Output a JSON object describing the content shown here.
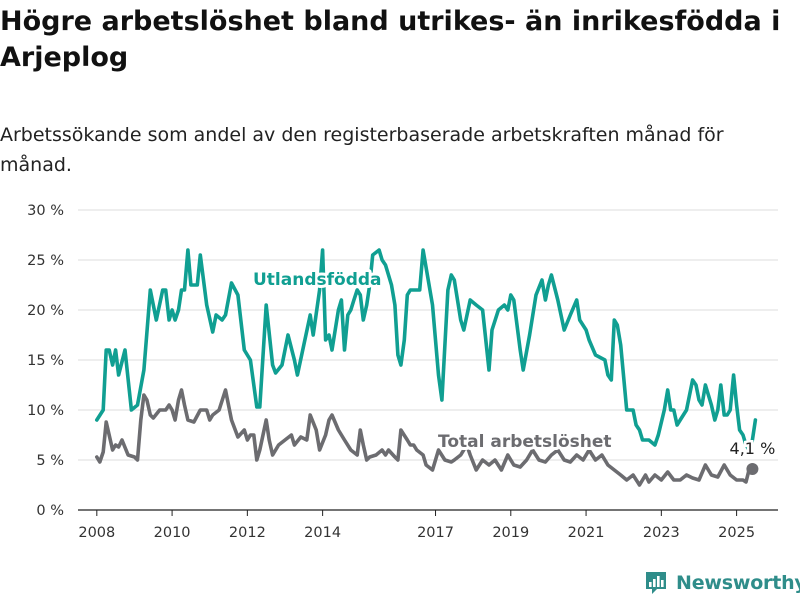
{
  "header": {
    "title": "Högre arbetslöshet bland utrikes- än inrikesfödda i Arjeplog",
    "subtitle": "Arbetssökande som andel av den registerbaserade arbetskraften månad för månad."
  },
  "brand": {
    "name": "Newsworthy",
    "icon": "newsworthy-logo-icon",
    "color": "#2f8d8a"
  },
  "chart_data": {
    "type": "line",
    "x_axis": {
      "min": 2007.5,
      "max": 2026.1,
      "ticks": [
        2008,
        2010,
        2012,
        2014,
        2017,
        2019,
        2021,
        2023,
        2025
      ]
    },
    "y_axis": {
      "min": 0,
      "max": 30,
      "ticks": [
        0,
        5,
        10,
        15,
        20,
        25,
        30
      ],
      "tick_suffix": " %"
    },
    "grid": "horizontal",
    "series": [
      {
        "name": "Utlandsfödda",
        "color": "#109f92",
        "label": "Utlandsfödda",
        "points": [
          [
            2008.0,
            9.0
          ],
          [
            2008.17,
            10.0
          ],
          [
            2008.25,
            16.0
          ],
          [
            2008.33,
            16.0
          ],
          [
            2008.42,
            14.5
          ],
          [
            2008.5,
            16.0
          ],
          [
            2008.58,
            13.5
          ],
          [
            2008.75,
            16.0
          ],
          [
            2008.92,
            10.0
          ],
          [
            2009.08,
            10.5
          ],
          [
            2009.25,
            14.0
          ],
          [
            2009.42,
            22.0
          ],
          [
            2009.58,
            19.0
          ],
          [
            2009.75,
            22.0
          ],
          [
            2009.83,
            22.0
          ],
          [
            2009.92,
            19.0
          ],
          [
            2010.0,
            20.0
          ],
          [
            2010.08,
            19.0
          ],
          [
            2010.17,
            20.0
          ],
          [
            2010.25,
            22.0
          ],
          [
            2010.33,
            22.0
          ],
          [
            2010.42,
            26.0
          ],
          [
            2010.5,
            22.5
          ],
          [
            2010.67,
            22.5
          ],
          [
            2010.75,
            25.5
          ],
          [
            2010.92,
            20.5
          ],
          [
            2011.08,
            17.8
          ],
          [
            2011.17,
            19.5
          ],
          [
            2011.33,
            19.0
          ],
          [
            2011.42,
            19.5
          ],
          [
            2011.58,
            22.7
          ],
          [
            2011.75,
            21.5
          ],
          [
            2011.92,
            16.0
          ],
          [
            2012.08,
            15.0
          ],
          [
            2012.25,
            10.3
          ],
          [
            2012.33,
            10.3
          ],
          [
            2012.5,
            20.5
          ],
          [
            2012.67,
            14.5
          ],
          [
            2012.75,
            13.7
          ],
          [
            2012.92,
            14.5
          ],
          [
            2013.08,
            17.5
          ],
          [
            2013.25,
            15.0
          ],
          [
            2013.33,
            13.5
          ],
          [
            2013.5,
            16.5
          ],
          [
            2013.67,
            19.5
          ],
          [
            2013.75,
            17.5
          ],
          [
            2013.92,
            22.0
          ],
          [
            2014.0,
            26.0
          ],
          [
            2014.08,
            17.0
          ],
          [
            2014.17,
            17.5
          ],
          [
            2014.25,
            16.0
          ],
          [
            2014.42,
            20.0
          ],
          [
            2014.5,
            21.0
          ],
          [
            2014.58,
            16.0
          ],
          [
            2014.67,
            19.5
          ],
          [
            2014.75,
            20.0
          ],
          [
            2014.83,
            21.0
          ],
          [
            2014.92,
            22.0
          ],
          [
            2015.0,
            21.5
          ],
          [
            2015.08,
            19.0
          ],
          [
            2015.17,
            20.5
          ],
          [
            2015.25,
            22.5
          ],
          [
            2015.33,
            25.5
          ],
          [
            2015.5,
            26.0
          ],
          [
            2015.58,
            25.0
          ],
          [
            2015.67,
            24.5
          ],
          [
            2015.83,
            22.5
          ],
          [
            2015.92,
            20.5
          ],
          [
            2016.0,
            15.5
          ],
          [
            2016.08,
            14.5
          ],
          [
            2016.17,
            17.0
          ],
          [
            2016.25,
            21.5
          ],
          [
            2016.33,
            22.0
          ],
          [
            2016.5,
            22.0
          ],
          [
            2016.58,
            22.0
          ],
          [
            2016.67,
            26.0
          ],
          [
            2016.92,
            20.5
          ],
          [
            2017.08,
            13.5
          ],
          [
            2017.17,
            11.0
          ],
          [
            2017.33,
            22.0
          ],
          [
            2017.42,
            23.5
          ],
          [
            2017.5,
            23.0
          ],
          [
            2017.67,
            19.0
          ],
          [
            2017.75,
            18.0
          ],
          [
            2017.92,
            21.0
          ],
          [
            2018.08,
            20.5
          ],
          [
            2018.25,
            20.0
          ],
          [
            2018.42,
            14.0
          ],
          [
            2018.5,
            18.0
          ],
          [
            2018.67,
            20.0
          ],
          [
            2018.83,
            20.5
          ],
          [
            2018.92,
            20.0
          ],
          [
            2019.0,
            21.5
          ],
          [
            2019.08,
            21.0
          ],
          [
            2019.25,
            16.0
          ],
          [
            2019.33,
            14.0
          ],
          [
            2019.5,
            17.5
          ],
          [
            2019.67,
            21.5
          ],
          [
            2019.83,
            23.0
          ],
          [
            2019.92,
            21.0
          ],
          [
            2020.0,
            22.5
          ],
          [
            2020.08,
            23.5
          ],
          [
            2020.25,
            21.0
          ],
          [
            2020.42,
            18.0
          ],
          [
            2020.58,
            19.5
          ],
          [
            2020.75,
            21.0
          ],
          [
            2020.83,
            19.0
          ],
          [
            2021.0,
            18.0
          ],
          [
            2021.08,
            17.0
          ],
          [
            2021.25,
            15.5
          ],
          [
            2021.5,
            15.0
          ],
          [
            2021.58,
            13.5
          ],
          [
            2021.67,
            13.0
          ],
          [
            2021.75,
            19.0
          ],
          [
            2021.83,
            18.5
          ],
          [
            2021.92,
            16.5
          ],
          [
            2022.08,
            10.0
          ],
          [
            2022.25,
            10.0
          ],
          [
            2022.33,
            8.5
          ],
          [
            2022.42,
            8.0
          ],
          [
            2022.5,
            7.0
          ],
          [
            2022.67,
            7.0
          ],
          [
            2022.83,
            6.5
          ],
          [
            2022.92,
            7.5
          ],
          [
            2023.08,
            10.0
          ],
          [
            2023.17,
            12.0
          ],
          [
            2023.25,
            10.0
          ],
          [
            2023.33,
            10.0
          ],
          [
            2023.42,
            8.5
          ],
          [
            2023.5,
            9.0
          ],
          [
            2023.67,
            10.0
          ],
          [
            2023.83,
            13.0
          ],
          [
            2023.92,
            12.5
          ],
          [
            2024.0,
            11.0
          ],
          [
            2024.08,
            10.5
          ],
          [
            2024.17,
            12.5
          ],
          [
            2024.33,
            10.5
          ],
          [
            2024.42,
            9.0
          ],
          [
            2024.5,
            10.0
          ],
          [
            2024.58,
            12.5
          ],
          [
            2024.67,
            9.5
          ],
          [
            2024.75,
            9.5
          ],
          [
            2024.83,
            10.0
          ],
          [
            2024.92,
            13.5
          ],
          [
            2025.0,
            10.5
          ],
          [
            2025.08,
            8.0
          ],
          [
            2025.17,
            7.5
          ],
          [
            2025.25,
            6.5
          ],
          [
            2025.33,
            6.0
          ],
          [
            2025.42,
            7.0
          ],
          [
            2025.5,
            9.0
          ]
        ]
      },
      {
        "name": "Total arbetslöshet",
        "color": "#6c6c70",
        "label": "Total arbetslöshet",
        "points": [
          [
            2008.0,
            5.3
          ],
          [
            2008.08,
            4.8
          ],
          [
            2008.17,
            5.8
          ],
          [
            2008.25,
            8.8
          ],
          [
            2008.42,
            6.0
          ],
          [
            2008.5,
            6.5
          ],
          [
            2008.58,
            6.3
          ],
          [
            2008.67,
            7.0
          ],
          [
            2008.83,
            5.5
          ],
          [
            2009.0,
            5.3
          ],
          [
            2009.08,
            5.0
          ],
          [
            2009.17,
            9.0
          ],
          [
            2009.25,
            11.5
          ],
          [
            2009.33,
            11.0
          ],
          [
            2009.42,
            9.5
          ],
          [
            2009.5,
            9.2
          ],
          [
            2009.67,
            10.0
          ],
          [
            2009.83,
            10.0
          ],
          [
            2009.92,
            10.5
          ],
          [
            2010.0,
            10.0
          ],
          [
            2010.08,
            9.0
          ],
          [
            2010.17,
            11.0
          ],
          [
            2010.25,
            12.0
          ],
          [
            2010.33,
            10.5
          ],
          [
            2010.42,
            9.0
          ],
          [
            2010.58,
            8.8
          ],
          [
            2010.75,
            10.0
          ],
          [
            2010.92,
            10.0
          ],
          [
            2011.0,
            9.0
          ],
          [
            2011.08,
            9.5
          ],
          [
            2011.25,
            10.0
          ],
          [
            2011.42,
            12.0
          ],
          [
            2011.58,
            9.0
          ],
          [
            2011.75,
            7.3
          ],
          [
            2011.92,
            8.0
          ],
          [
            2012.0,
            7.0
          ],
          [
            2012.08,
            7.5
          ],
          [
            2012.17,
            7.5
          ],
          [
            2012.25,
            5.0
          ],
          [
            2012.33,
            6.0
          ],
          [
            2012.5,
            9.0
          ],
          [
            2012.58,
            7.0
          ],
          [
            2012.67,
            5.5
          ],
          [
            2012.83,
            6.5
          ],
          [
            2013.0,
            7.0
          ],
          [
            2013.17,
            7.5
          ],
          [
            2013.25,
            6.5
          ],
          [
            2013.42,
            7.3
          ],
          [
            2013.58,
            7.0
          ],
          [
            2013.67,
            9.5
          ],
          [
            2013.83,
            8.0
          ],
          [
            2013.92,
            6.0
          ],
          [
            2014.08,
            7.5
          ],
          [
            2014.17,
            9.0
          ],
          [
            2014.25,
            9.5
          ],
          [
            2014.42,
            8.0
          ],
          [
            2014.58,
            7.0
          ],
          [
            2014.75,
            6.0
          ],
          [
            2014.92,
            5.5
          ],
          [
            2015.0,
            8.0
          ],
          [
            2015.08,
            6.5
          ],
          [
            2015.17,
            5.0
          ],
          [
            2015.25,
            5.3
          ],
          [
            2015.42,
            5.5
          ],
          [
            2015.58,
            6.0
          ],
          [
            2015.67,
            5.5
          ],
          [
            2015.75,
            6.0
          ],
          [
            2015.92,
            5.3
          ],
          [
            2016.0,
            5.0
          ],
          [
            2016.08,
            8.0
          ],
          [
            2016.25,
            7.0
          ],
          [
            2016.33,
            6.5
          ],
          [
            2016.42,
            6.5
          ],
          [
            2016.5,
            6.0
          ],
          [
            2016.67,
            5.5
          ],
          [
            2016.75,
            4.5
          ],
          [
            2016.92,
            4.0
          ],
          [
            2017.08,
            6.0
          ],
          [
            2017.25,
            5.0
          ],
          [
            2017.42,
            4.8
          ],
          [
            2017.5,
            5.0
          ],
          [
            2017.67,
            5.5
          ],
          [
            2017.83,
            6.5
          ],
          [
            2017.92,
            5.5
          ],
          [
            2018.08,
            4.0
          ],
          [
            2018.25,
            5.0
          ],
          [
            2018.42,
            4.5
          ],
          [
            2018.58,
            5.0
          ],
          [
            2018.75,
            4.0
          ],
          [
            2018.92,
            5.5
          ],
          [
            2019.08,
            4.5
          ],
          [
            2019.25,
            4.3
          ],
          [
            2019.42,
            5.0
          ],
          [
            2019.58,
            6.0
          ],
          [
            2019.75,
            5.0
          ],
          [
            2019.92,
            4.8
          ],
          [
            2020.08,
            5.5
          ],
          [
            2020.25,
            6.0
          ],
          [
            2020.42,
            5.0
          ],
          [
            2020.58,
            4.8
          ],
          [
            2020.75,
            5.5
          ],
          [
            2020.92,
            5.0
          ],
          [
            2021.08,
            6.0
          ],
          [
            2021.25,
            5.0
          ],
          [
            2021.42,
            5.5
          ],
          [
            2021.58,
            4.5
          ],
          [
            2021.75,
            4.0
          ],
          [
            2021.92,
            3.5
          ],
          [
            2022.08,
            3.0
          ],
          [
            2022.25,
            3.5
          ],
          [
            2022.42,
            2.5
          ],
          [
            2022.58,
            3.5
          ],
          [
            2022.67,
            2.8
          ],
          [
            2022.83,
            3.5
          ],
          [
            2023.0,
            3.0
          ],
          [
            2023.17,
            3.8
          ],
          [
            2023.33,
            3.0
          ],
          [
            2023.5,
            3.0
          ],
          [
            2023.67,
            3.5
          ],
          [
            2023.83,
            3.2
          ],
          [
            2024.0,
            3.0
          ],
          [
            2024.17,
            4.5
          ],
          [
            2024.33,
            3.5
          ],
          [
            2024.5,
            3.3
          ],
          [
            2024.67,
            4.5
          ],
          [
            2024.83,
            3.5
          ],
          [
            2025.0,
            3.0
          ],
          [
            2025.17,
            3.0
          ],
          [
            2025.25,
            2.8
          ],
          [
            2025.33,
            4.0
          ],
          [
            2025.42,
            4.1
          ]
        ]
      }
    ],
    "end_label": {
      "series": "Total arbetslöshet",
      "x": 2025.42,
      "y": 4.1,
      "text": "4,1 %"
    }
  }
}
